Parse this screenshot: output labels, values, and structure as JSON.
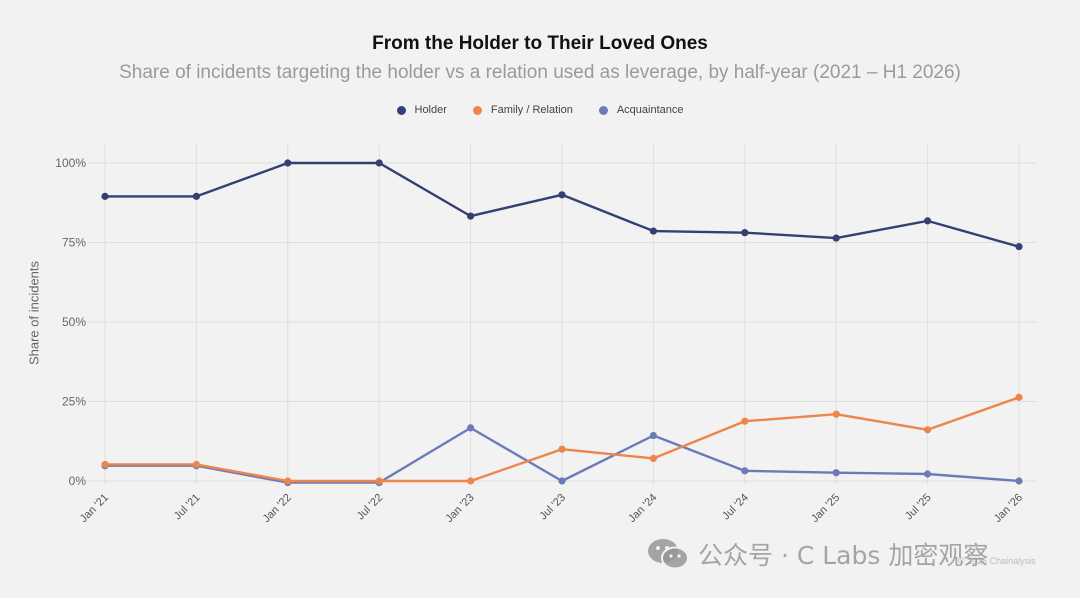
{
  "chart_data": {
    "type": "line",
    "title": "From the Holder to Their Loved Ones",
    "subtitle": "Share of incidents targeting the holder vs a relation used as leverage, by half-year (2021 – H1 2026)",
    "ylabel": "Share of incidents",
    "xlabel": "",
    "categories": [
      "Jan '21",
      "Jul '21",
      "Jan '22",
      "Jul '22",
      "Jan '23",
      "Jul '23",
      "Jan '24",
      "Jul '24",
      "Jan '25",
      "Jul '25",
      "Jan '26"
    ],
    "yticks": [
      0,
      25,
      50,
      75,
      100
    ],
    "ytick_labels": [
      "0%",
      "25%",
      "50%",
      "75%",
      "100%"
    ],
    "ylim": [
      -1,
      103
    ],
    "grid": true,
    "legend_position": "top-center",
    "series": [
      {
        "name": "Holder",
        "color": "#343f72",
        "values": [
          89.5,
          89.5,
          100,
          100,
          83.3,
          90,
          78.6,
          78.1,
          76.4,
          81.8,
          73.7
        ]
      },
      {
        "name": "Family / Relation",
        "color": "#ee854a",
        "values": [
          5.2,
          5.2,
          0,
          0,
          0,
          10,
          7.1,
          18.8,
          21,
          16.1,
          26.3
        ]
      },
      {
        "name": "Acquaintance",
        "color": "#6b7bb8",
        "values": [
          4.8,
          4.8,
          -0.5,
          -0.5,
          16.7,
          0,
          14.3,
          3.2,
          2.6,
          2.2,
          0
        ]
      }
    ]
  },
  "watermark": {
    "text": "公众号 · C Labs 加密观察",
    "icon": "wechat-icon"
  },
  "footnote": "© 2026 Chainalysis"
}
